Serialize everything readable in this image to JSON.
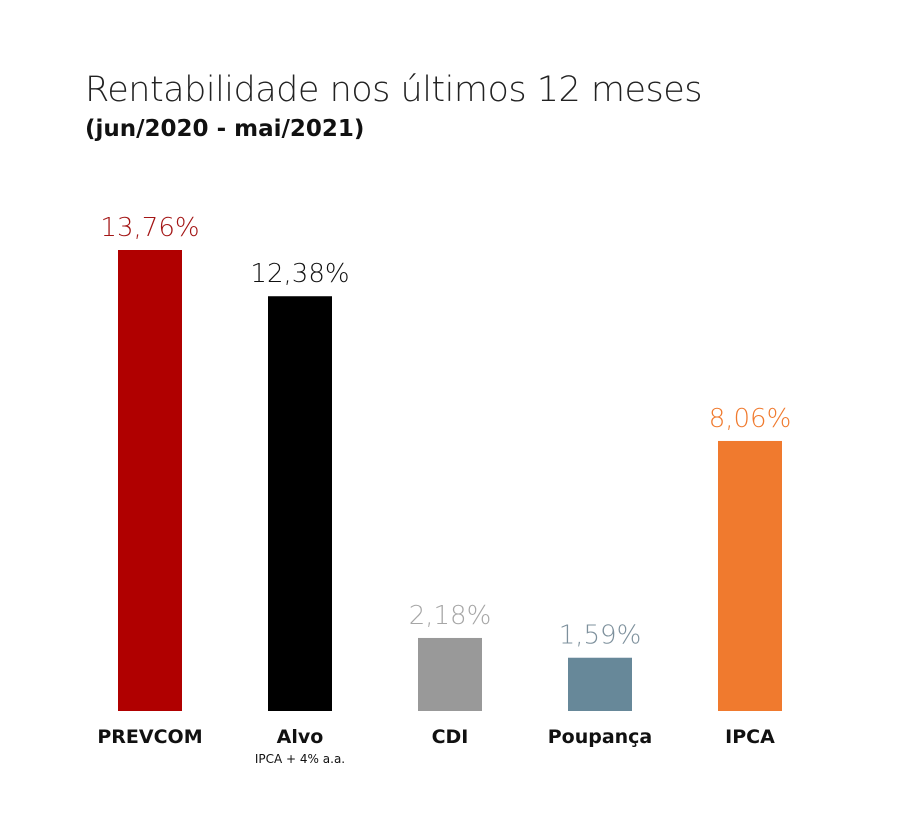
{
  "chart_data": {
    "type": "bar",
    "title": "Rentabilidade nos últimos 12 meses",
    "subtitle": "(jun/2020 - mai/2021)",
    "categories": [
      "PREVCOM",
      "Alvo",
      "CDI",
      "Poupança",
      "IPCA"
    ],
    "category_sublabels": [
      "",
      "IPCA + 4% a.a.",
      "",
      "",
      ""
    ],
    "values": [
      13.76,
      12.38,
      2.18,
      1.59,
      8.06
    ],
    "data_labels": [
      "13,76%",
      "12,38%",
      "2,18%",
      "1,59%",
      "8,06%"
    ],
    "bar_colors": [
      "#b00000",
      "#000000",
      "#999999",
      "#678899",
      "#f07a2e"
    ],
    "label_colors": [
      "#a31515",
      "#111111",
      "#a6a6a6",
      "#7d909c",
      "#f07a2e"
    ],
    "ylim": [
      0,
      13.76
    ],
    "grid": false,
    "legend": "none",
    "xlabel": "",
    "ylabel": ""
  }
}
